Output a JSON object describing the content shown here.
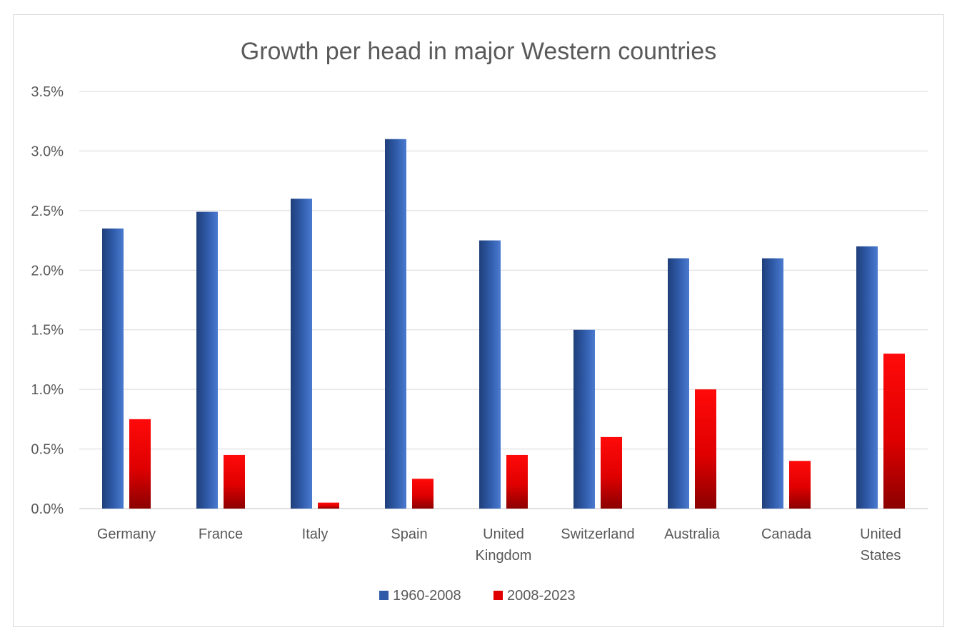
{
  "chart_data": {
    "type": "bar",
    "title": "Growth per head in major Western countries",
    "categories": [
      [
        "Germany"
      ],
      [
        "France"
      ],
      [
        "Italy"
      ],
      [
        "Spain"
      ],
      [
        "United",
        "Kingdom"
      ],
      [
        "Switzerland"
      ],
      [
        "Australia"
      ],
      [
        "Canada"
      ],
      [
        "United",
        "States"
      ]
    ],
    "series": [
      {
        "name": "1960-2008",
        "color": "#2f5aa8",
        "values": [
          2.35,
          2.49,
          2.6,
          3.1,
          2.25,
          1.5,
          2.1,
          2.1,
          2.2
        ]
      },
      {
        "name": "2008-2023",
        "color": "#e00000",
        "values": [
          0.75,
          0.45,
          0.05,
          0.25,
          0.45,
          0.6,
          1.0,
          0.4,
          1.3
        ]
      }
    ],
    "ylim": [
      0,
      3.5
    ],
    "yticks": [
      "0.0%",
      "0.5%",
      "1.0%",
      "1.5%",
      "2.0%",
      "2.5%",
      "3.0%",
      "3.5%"
    ],
    "ytick_values": [
      0,
      0.5,
      1.0,
      1.5,
      2.0,
      2.5,
      3.0,
      3.5
    ],
    "grid": true,
    "legend_position": "bottom"
  }
}
